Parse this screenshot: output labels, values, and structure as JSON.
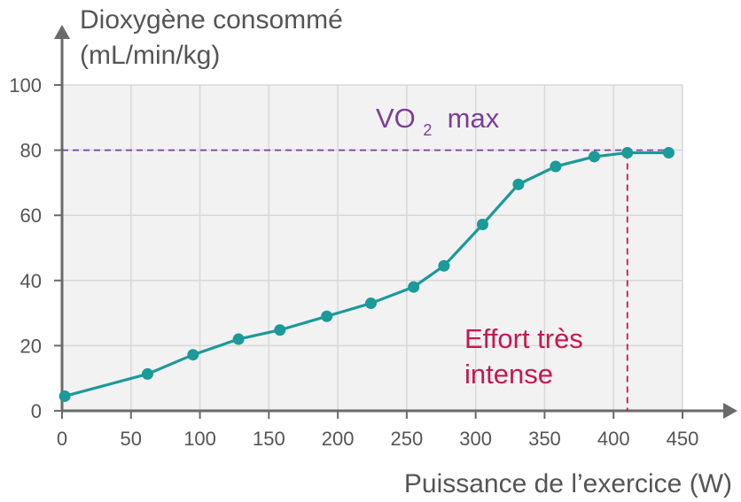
{
  "chart_data": {
    "type": "line",
    "ylabel_lines": [
      "Dioxygène consommé",
      "(mL/min/kg)"
    ],
    "xlabel": "Puissance de l’exercice (W)",
    "xlim": [
      0,
      450
    ],
    "ylim": [
      0,
      100
    ],
    "x_ticks": [
      0,
      50,
      100,
      150,
      200,
      250,
      300,
      350,
      400,
      450
    ],
    "y_ticks": [
      0,
      20,
      40,
      60,
      80,
      100
    ],
    "grid": true,
    "series": [
      {
        "color": "#1a9a98",
        "points": [
          {
            "x": 2,
            "y": 4.5
          },
          {
            "x": 62,
            "y": 11.3
          },
          {
            "x": 95,
            "y": 17.2
          },
          {
            "x": 128,
            "y": 22
          },
          {
            "x": 158,
            "y": 24.8
          },
          {
            "x": 192,
            "y": 29
          },
          {
            "x": 224,
            "y": 33
          },
          {
            "x": 255,
            "y": 38
          },
          {
            "x": 277,
            "y": 44.5
          },
          {
            "x": 305,
            "y": 57.2
          },
          {
            "x": 331,
            "y": 69.5
          },
          {
            "x": 358,
            "y": 75
          },
          {
            "x": 386,
            "y": 78
          },
          {
            "x": 410,
            "y": 79.2
          },
          {
            "x": 440,
            "y": 79.2
          }
        ]
      }
    ],
    "reference_lines": [
      {
        "orientation": "horizontal",
        "y": 80,
        "color": "#7b3f98",
        "dashed": true
      },
      {
        "orientation": "vertical",
        "x": 410,
        "color": "#c8174f",
        "dashed": true
      }
    ],
    "annotations": [
      {
        "text_main": "VO",
        "text_sub": "2",
        "text_after": " max",
        "color": "#7b3f98"
      },
      {
        "lines": [
          "Effort très",
          "intense"
        ],
        "color": "#c8174f"
      }
    ],
    "colors": {
      "plot_background": "#f2f2f3",
      "grid": "#d8d8d8",
      "axis": "#6a6a6a",
      "text": "#555555"
    }
  }
}
